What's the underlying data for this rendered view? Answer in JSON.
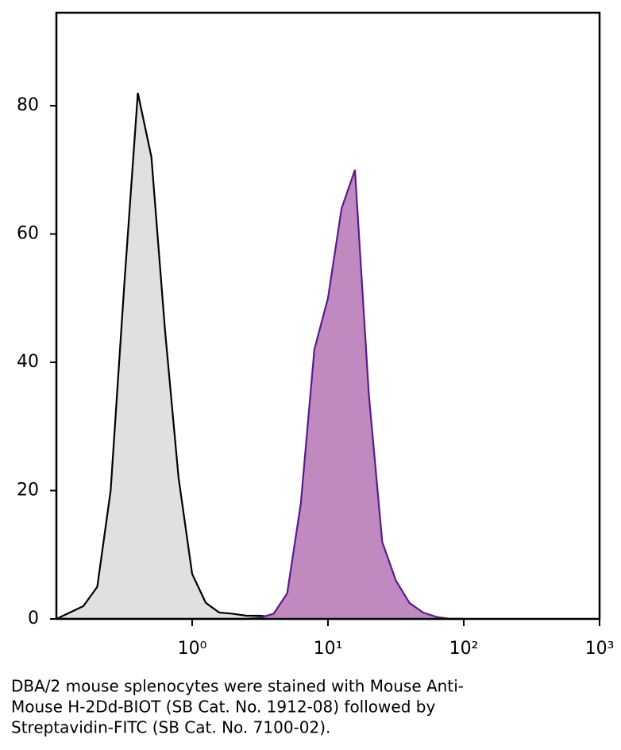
{
  "chart_data": {
    "type": "area",
    "x": [
      0.1,
      0.126,
      0.158,
      0.2,
      0.251,
      0.316,
      0.398,
      0.501,
      0.631,
      0.794,
      1,
      1.26,
      1.58,
      2,
      2.51,
      3.16,
      3.98,
      5.01,
      6.31,
      7.94,
      10,
      12.6,
      15.8,
      20,
      25.1,
      31.6,
      39.8,
      50.1,
      63.1,
      79.4,
      100
    ],
    "series": [
      {
        "color": "#e0e0e0",
        "line_color": "#000000",
        "values": [
          0,
          1,
          2,
          5,
          20,
          52,
          82,
          72,
          45,
          22,
          7,
          2.5,
          1,
          0.8,
          0.5,
          0.5,
          0.3,
          0,
          0,
          0,
          0,
          0,
          0,
          0,
          0,
          0,
          0,
          0,
          0,
          0,
          0
        ]
      },
      {
        "color": "#c08ac0",
        "line_color": "#5a1a8a",
        "values": [
          0,
          0,
          0,
          0,
          0,
          0,
          0,
          0,
          0,
          0,
          0,
          0,
          0,
          0,
          0,
          0.2,
          0.8,
          4,
          18,
          42,
          50,
          64,
          70,
          35,
          12,
          6,
          2.5,
          1,
          0.3,
          0,
          0
        ]
      }
    ],
    "xlog": true,
    "xlim": [
      0.1,
      1000
    ],
    "xticks": [
      {
        "value": 1,
        "label": "10⁰"
      },
      {
        "value": 10,
        "label": "10¹"
      },
      {
        "value": 100,
        "label": "10²"
      },
      {
        "value": 1000,
        "label": "10³"
      }
    ],
    "ylim": [
      0,
      94.5
    ],
    "yticks": [
      0,
      20,
      40,
      60,
      80
    ],
    "caption": [
      "DBA/2 mouse splenocytes were stained with Mouse Anti-",
      "Mouse H-2Dd-BIOT (SB Cat. No. 1912-08) followed by",
      "Streptavidin-FITC (SB Cat. No. 7100-02)."
    ]
  }
}
